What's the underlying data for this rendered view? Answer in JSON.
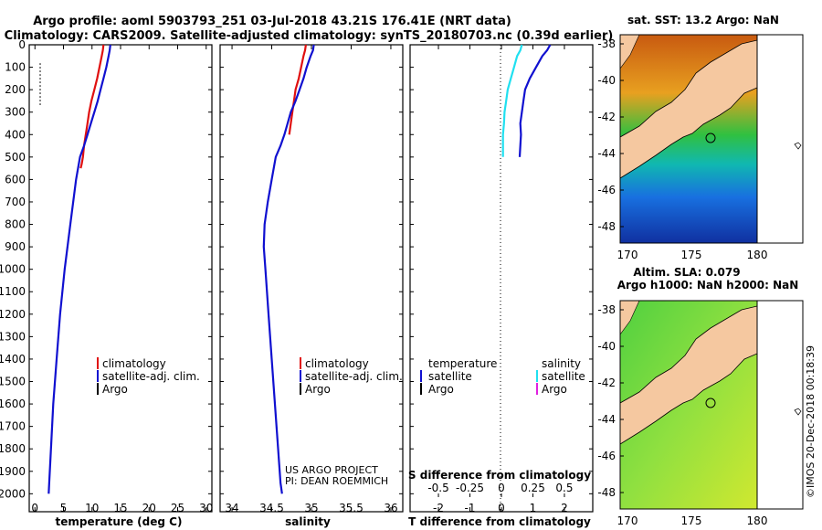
{
  "header": {
    "title_line1": "Argo profile: aoml 5903793_251 03-Jul-2018 43.21S 176.41E (NRT data)",
    "title_line2": "Climatology: CARS2009. Satellite-adjusted climatology: synTS_20180703.nc (0.39d earlier)"
  },
  "credit": {
    "line1": "US ARGO PROJECT",
    "line2": "PI: DEAN ROEMMICH"
  },
  "watermark": "©IMOS 20-Dec-2018 00:18:39",
  "colors": {
    "climatology": "#e01010",
    "satellite": "#1010d0",
    "argo": "#000000",
    "satellite_sal": "#20e0f0",
    "argo_sal": "#e020e0",
    "land": "#f5c8a0"
  },
  "chart_data": [
    {
      "id": "temperature",
      "type": "line",
      "xlabel": "temperature (deg C)",
      "xlim": [
        -1,
        31
      ],
      "xticks": [
        "0",
        "5",
        "10",
        "15",
        "20",
        "25",
        "30"
      ],
      "ylim": [
        2080,
        0
      ],
      "yticks": [
        "0",
        "100",
        "200",
        "300",
        "400",
        "500",
        "600",
        "700",
        "800",
        "900",
        "1000",
        "1100",
        "1200",
        "1300",
        "1400",
        "1500",
        "1600",
        "1700",
        "1800",
        "1900",
        "2000"
      ],
      "legend": [
        "climatology",
        "satellite-adj. clim.",
        "Argo"
      ],
      "series": [
        {
          "name": "climatology",
          "color": "#e01010",
          "x": [
            12.0,
            11.9,
            11.7,
            11.3,
            10.9,
            10.4,
            9.9,
            9.5,
            9.2,
            8.9,
            8.6,
            8.4,
            8.2,
            8.0
          ],
          "y": [
            0,
            25,
            50,
            100,
            150,
            200,
            250,
            300,
            350,
            400,
            450,
            500,
            530,
            550
          ]
        },
        {
          "name": "satellite-adj. clim.",
          "color": "#1010d0",
          "x": [
            13.2,
            13.1,
            12.9,
            12.5,
            12.0,
            11.5,
            11.0,
            10.4,
            9.8,
            9.2,
            8.6,
            7.9,
            7.2,
            6.2,
            5.2,
            4.4,
            3.8,
            3.2,
            2.8,
            2.5,
            2.4
          ],
          "y": [
            0,
            25,
            50,
            100,
            150,
            200,
            250,
            300,
            350,
            400,
            450,
            500,
            600,
            800,
            1000,
            1200,
            1400,
            1600,
            1800,
            1950,
            2000
          ]
        }
      ]
    },
    {
      "id": "salinity",
      "type": "line",
      "xlabel": "salinity",
      "xlim": [
        33.85,
        36.15
      ],
      "xticks": [
        "34",
        "34.5",
        "35",
        "35.5",
        "36"
      ],
      "ylim": [
        2080,
        0
      ],
      "legend": [
        "climatology",
        "satellite-adj. clim.",
        "Argo"
      ],
      "series": [
        {
          "name": "climatology",
          "color": "#e01010",
          "x": [
            34.93,
            34.92,
            34.9,
            34.87,
            34.84,
            34.8,
            34.78,
            34.76,
            34.74,
            34.72
          ],
          "y": [
            0,
            25,
            50,
            100,
            150,
            200,
            250,
            300,
            350,
            400
          ]
        },
        {
          "name": "satellite-adj. clim.",
          "color": "#1010d0",
          "x": [
            35.03,
            35.02,
            34.99,
            34.94,
            34.9,
            34.85,
            34.8,
            34.74,
            34.7,
            34.66,
            34.61,
            34.55,
            34.5,
            34.45,
            34.41,
            34.4,
            34.42,
            34.46,
            34.5,
            34.54,
            34.58,
            34.61,
            34.63
          ],
          "y": [
            0,
            25,
            50,
            100,
            150,
            200,
            250,
            300,
            350,
            400,
            450,
            500,
            600,
            700,
            800,
            900,
            1000,
            1200,
            1400,
            1600,
            1800,
            1950,
            2000
          ]
        }
      ]
    },
    {
      "id": "difference",
      "type": "line",
      "xlabel": "T difference from climatology",
      "xlabel2": "S difference from climatology",
      "xlim": [
        -2.9,
        2.9
      ],
      "xticks": [
        "-2",
        "-1",
        "0",
        "1",
        "2"
      ],
      "xticks2": [
        "-0.5",
        "-0.25",
        "0",
        "0.25",
        "0.5"
      ],
      "ylim": [
        2080,
        0
      ],
      "legend_t": [
        "temperature",
        "satellite",
        "Argo"
      ],
      "legend_s": [
        "salinity",
        "satellite",
        "Argo"
      ],
      "series": [
        {
          "name": "satellite",
          "color": "#1010d0",
          "x": [
            1.55,
            1.45,
            1.3,
            1.1,
            0.9,
            0.75,
            0.7,
            0.65,
            0.6,
            0.62,
            0.6,
            0.58
          ],
          "y": [
            0,
            25,
            50,
            100,
            150,
            200,
            250,
            300,
            350,
            400,
            450,
            500
          ]
        },
        {
          "name": "satellite salinity",
          "color": "#20e0f0",
          "x": [
            0.65,
            0.6,
            0.5,
            0.4,
            0.3,
            0.2,
            0.15,
            0.1,
            0.08,
            0.05,
            0.05,
            0.05
          ],
          "y": [
            0,
            25,
            50,
            100,
            150,
            200,
            250,
            300,
            350,
            400,
            450,
            500
          ]
        }
      ]
    }
  ],
  "maps": [
    {
      "id": "sst-map",
      "title": "sat. SST: 13.2 Argo: NaN",
      "yticks": [
        "-38",
        "-40",
        "-42",
        "-44",
        "-46",
        "-48"
      ],
      "xticks": [
        "170",
        "175",
        "180"
      ]
    },
    {
      "id": "sla-map",
      "title_line1": "Altim. SLA: 0.079",
      "title_line2": "Argo h1000: NaN h2000: NaN",
      "yticks": [
        "-38",
        "-40",
        "-42",
        "-44",
        "-46",
        "-48"
      ],
      "xticks": [
        "170",
        "175",
        "180"
      ]
    }
  ]
}
